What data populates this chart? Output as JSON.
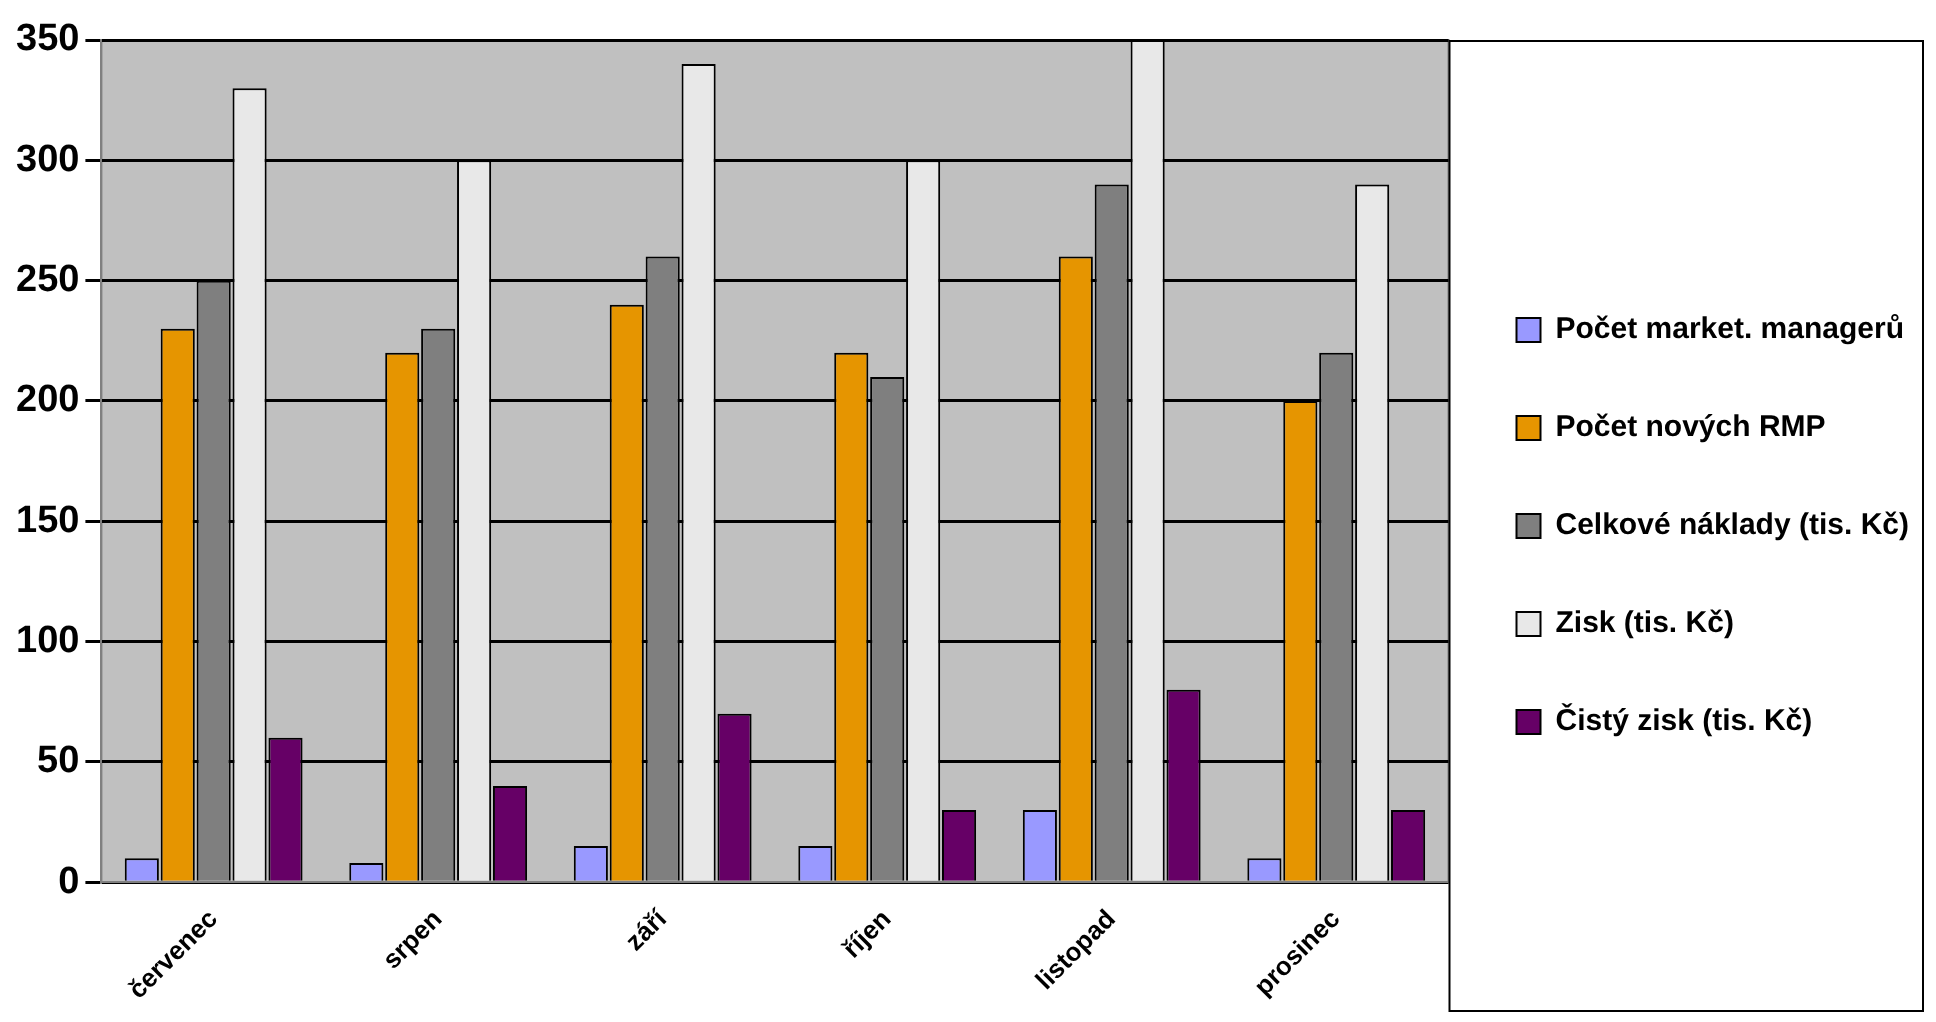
{
  "chart_data": {
    "type": "bar",
    "categories": [
      "červenec",
      "srpen",
      "září",
      "říjen",
      "listopad",
      "prosinec"
    ],
    "series": [
      {
        "name": "Počet market. managerů",
        "color": "#9999ff",
        "values": [
          10,
          8,
          15,
          15,
          30,
          10
        ]
      },
      {
        "name": "Počet nových RMP",
        "color": "#e69500",
        "values": [
          230,
          220,
          240,
          220,
          260,
          200
        ]
      },
      {
        "name": "Celkové náklady (tis. Kč)",
        "color": "#7f7f7f",
        "values": [
          250,
          230,
          260,
          210,
          290,
          220
        ]
      },
      {
        "name": "Zisk (tis. Kč)",
        "color": "#e8e8e8",
        "values": [
          330,
          300,
          340,
          300,
          350,
          290
        ]
      },
      {
        "name": "Čistý zisk (tis. Kč)",
        "color": "#660066",
        "values": [
          60,
          40,
          70,
          30,
          80,
          30
        ]
      }
    ],
    "ylim": [
      0,
      350
    ],
    "yticks": [
      0,
      50,
      100,
      150,
      200,
      250,
      300,
      350
    ],
    "grid": "y",
    "legend": "right"
  }
}
